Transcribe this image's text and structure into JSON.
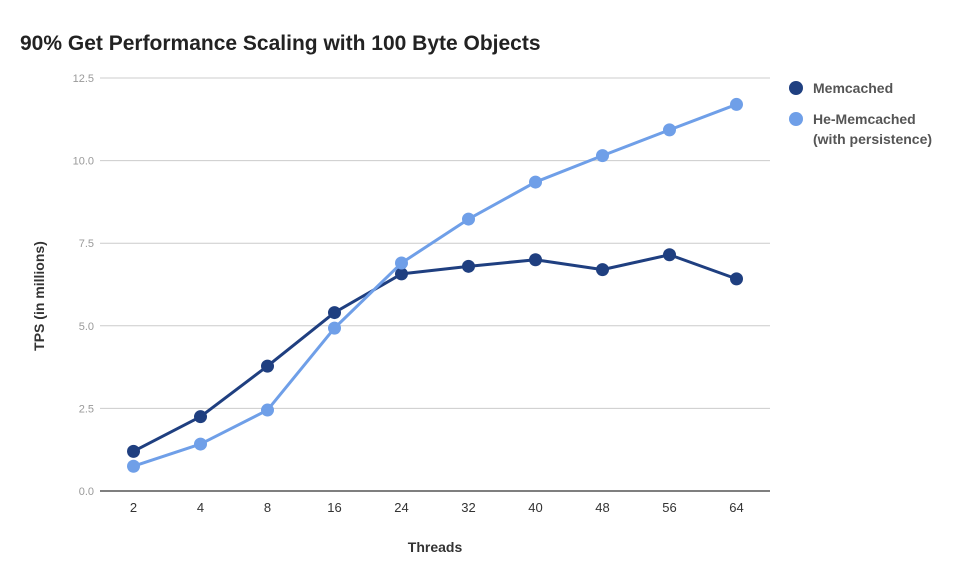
{
  "chart_data": {
    "type": "line",
    "title": "90% Get Performance Scaling with 100 Byte Objects",
    "xlabel": "Threads",
    "ylabel": "TPS (in millions)",
    "categories": [
      "2",
      "4",
      "8",
      "16",
      "24",
      "32",
      "40",
      "48",
      "56",
      "64"
    ],
    "ylim": [
      0,
      12.5
    ],
    "yticks": [
      "0.0",
      "2.5",
      "5.0",
      "7.5",
      "10.0",
      "12.5"
    ],
    "grid": true,
    "legend_position": "right",
    "series": [
      {
        "name": "Memcached",
        "legend_lines": [
          "Memcached"
        ],
        "color": "#1f3f80",
        "values": [
          1.2,
          2.25,
          3.78,
          5.4,
          6.57,
          6.8,
          7.0,
          6.7,
          7.15,
          6.42
        ]
      },
      {
        "name": "He-Memcached (with persistence)",
        "legend_lines": [
          "He-Memcached",
          "(with persistence)"
        ],
        "color": "#6f9fe8",
        "values": [
          0.75,
          1.42,
          2.45,
          4.93,
          6.9,
          8.23,
          9.35,
          10.15,
          10.93,
          11.7
        ]
      }
    ]
  }
}
